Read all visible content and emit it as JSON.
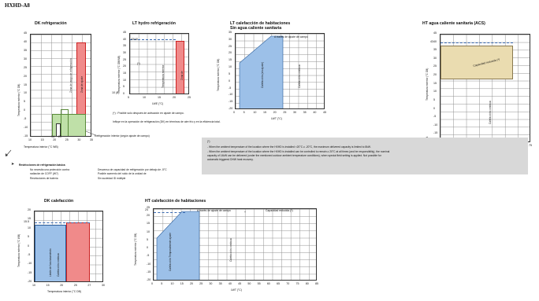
{
  "doc_title": "HXHD-A8",
  "charts": {
    "dk_ref": {
      "title": "DK refrigeración",
      "yticks": [
        "45",
        "40",
        "35",
        "30",
        "25",
        "20",
        "15",
        "10",
        "5",
        "0",
        "-5",
        "-10",
        "-15"
      ],
      "xticks": [
        "10",
        "15",
        "20",
        "25",
        "30",
        "35"
      ],
      "xlabel": "Temperatura interior (°C WB)",
      "ylabel": "Temperatura exterior (°C DB)",
      "region_red": "Zona de rango de refrigeración",
      "region_red_short": "Zona de ajuste",
      "green_label": "Refrigeración interior (según ajuste de campo)",
      "marker_14": "14",
      "marker_20": "20"
    },
    "lt_hydro": {
      "title": "LT hydro refrigeración",
      "yticks": [
        "45",
        "40",
        "35",
        "30",
        "25",
        "20",
        "15",
        "10",
        "5",
        "0"
      ],
      "ytop": "43/40",
      "xticks": [
        "5",
        "10",
        "15",
        "20",
        "25"
      ],
      "xlabel": "LWE (°C)",
      "ylabel": "Temperatura exterior (°C DB/WB)",
      "star": "(*)",
      "region_text": "Temperatura exterior",
      "red_text": "Zona de",
      "ymin_label": "10 (8)"
    },
    "lt_cal": {
      "title": "LT calefacción de habitaciones",
      "subtitle": "Sin agua caliente sanitaria",
      "yticks": [
        "35",
        "30",
        "25",
        "20",
        "15",
        "10",
        "5",
        "0",
        "-5",
        "-10",
        "-15",
        "-20"
      ],
      "xticks": [
        "0",
        "5",
        "10",
        "15",
        "20",
        "25",
        "30",
        "35",
        "40",
        "45"
      ],
      "xlabel": "LWT (°C)",
      "ylabel": "Temperatura exterior (°C DB)",
      "top_note": "A través de ajuste de campo",
      "blue_text": "Calefacción (sin ajuste)",
      "side_text": "Calefacción continua"
    },
    "ht_acs": {
      "title": "HT agua caliente sanitaria (ACS)",
      "yticks": [
        "45",
        "40",
        "35",
        "30",
        "25",
        "20",
        "15",
        "10",
        "5",
        "0",
        "-5",
        "-10",
        "-15",
        "-20"
      ],
      "ytop": "43",
      "xticks": [
        "45",
        "50",
        "55",
        "60",
        "65",
        "70",
        "75"
      ],
      "xlabel": "Temperatura del depósito de agua caliente exterior (°C)",
      "ylabel": "Temperatura exterior (°C DB)",
      "tan_text": "Capacidad reducida (*)",
      "side_text": "Calefacción continua"
    },
    "dk_cal": {
      "title": "DK calefacción",
      "yticks": [
        "20",
        "15",
        "10",
        "5",
        "0",
        "-5",
        "-10",
        "-15",
        "-20"
      ],
      "ymark": "15.5",
      "xticks": [
        "10",
        "15",
        "20",
        "25",
        "27",
        "30"
      ],
      "xlabel": "Temperatura interior (°C DB)",
      "ylabel": "Temperatura exterior (°C WB)",
      "blue_text": "Límite de funcionamiento",
      "red_text": "Calefacción continua"
    },
    "ht_cal": {
      "title": "HT calefacción de habitaciones",
      "yticks": [
        "25",
        "20",
        "15",
        "10",
        "5",
        "0",
        "-5",
        "-10",
        "-15",
        "-20"
      ],
      "ymark": "24",
      "xticks": [
        "0",
        "5",
        "10",
        "15",
        "20",
        "25",
        "30",
        "35",
        "40",
        "45",
        "50",
        "55",
        "60",
        "65",
        "70",
        "75",
        "80",
        "85"
      ],
      "xlabel": "LWT (°C)",
      "ylabel": "Temperatura exterior (°C DB)",
      "top_note": "A través de ajuste de campo",
      "plus": "+",
      "reduced": "Capacidad reducida (*)",
      "blue_text": "Calefacción Temporalmente ajuste",
      "side_text": "Calefacción continua"
    }
  },
  "lt_star_note_1": "(*) :   Posible solo después de activación en ajuste de campo.",
  "lt_star_note_2": "Influye en la operación de refrigeración (DK) en términos de aire frío y en la eficiencia total.",
  "bullets": {
    "header": "Restricciones de refrigeración básica",
    "left": [
      "No necesita una protección contra",
      "radiación de COFF (W7)",
      "Restricciones de batería"
    ],
    "right": [
      "Descenso de capacidad de refrigeración por debajo de -5°C",
      "Posible aumento del ruido de la unidad de",
      "Sin suciedad ID múltiple"
    ]
  },
  "infobox": [
    "(*)",
    "- When the ambient temperature of the location where the HXHD is installed <20°C ≥ -20°C, the maximum delivered capacity is limited to 8kW.",
    "- When the ambient temperature of the location where the HXHD is installed can be controlled to remain ≥ 20°C at all times (and be responsibility), the nominal",
    "  capacity of 14kW can be delivered (under the mentioned outdoor ambient temperature conditions), when special field setting is applied. Not possible for",
    "  automatic triggered DHW heat recovery."
  ]
}
